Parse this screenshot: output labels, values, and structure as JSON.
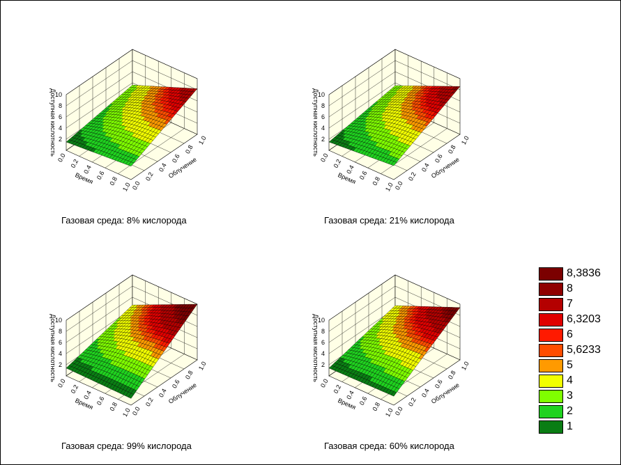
{
  "chart_data": [
    {
      "type": "surface3d",
      "title": "Газовая среда: 8% кислорода",
      "zlabel": "Доступная кислотность",
      "xlabel": "Время",
      "ylabel": "Облучение",
      "x_ticks": [
        "0.0",
        "0.2",
        "0.4",
        "0.6",
        "0.8",
        "1.0"
      ],
      "y_ticks": [
        "0.0",
        "0.2",
        "0.4",
        "0.6",
        "0.8",
        "1.0"
      ],
      "z_ticks": [
        "2",
        "4",
        "6",
        "8",
        "10"
      ],
      "zlim": [
        0,
        10
      ],
      "corner_values": {
        "time0_irr0": 1.5,
        "time1_irr0": 2.4,
        "time0_irr1": 3.6,
        "time1_irr1": 8.2
      }
    },
    {
      "type": "surface3d",
      "title": "Газовая среда: 21% кислорода",
      "zlabel": "Доступная кислотность",
      "xlabel": "Время",
      "ylabel": "Облучение",
      "x_ticks": [
        "0.0",
        "0.2",
        "0.4",
        "0.6",
        "0.8",
        "1.0"
      ],
      "y_ticks": [
        "0.0",
        "0.2",
        "0.4",
        "0.6",
        "0.8",
        "1.0"
      ],
      "z_ticks": [
        "2",
        "4",
        "6",
        "8",
        "10"
      ],
      "zlim": [
        0,
        10
      ],
      "corner_values": {
        "time0_irr0": 1.5,
        "time1_irr0": 2.5,
        "time0_irr1": 3.5,
        "time1_irr1": 8.6
      }
    },
    {
      "type": "surface3d",
      "title": "Газовая среда: 99% кислорода",
      "zlabel": "Доступная кислотность",
      "xlabel": "Время",
      "ylabel": "Облучение",
      "x_ticks": [
        "0.0",
        "0.2",
        "0.4",
        "0.6",
        "0.8",
        "1.0"
      ],
      "y_ticks": [
        "0.0",
        "0.2",
        "0.4",
        "0.6",
        "0.8",
        "1.0"
      ],
      "z_ticks": [
        "2",
        "4",
        "6",
        "8",
        "10"
      ],
      "zlim": [
        0,
        10
      ],
      "corner_values": {
        "time0_irr0": 1.4,
        "time1_irr0": 1.2,
        "time0_irr1": 4.6,
        "time1_irr1": 10.0
      }
    },
    {
      "type": "surface3d",
      "title": "Газовая среда: 60% кислорода",
      "zlabel": "Доступная кислотность",
      "xlabel": "Время",
      "ylabel": "Облучение",
      "x_ticks": [
        "0.0",
        "0.2",
        "0.4",
        "0.6",
        "0.8",
        "1.0"
      ],
      "y_ticks": [
        "0.0",
        "0.2",
        "0.4",
        "0.6",
        "0.8",
        "1.0"
      ],
      "z_ticks": [
        "2",
        "4",
        "6",
        "8",
        "10"
      ],
      "zlim": [
        0,
        10
      ],
      "corner_values": {
        "time0_irr0": 1.4,
        "time1_irr0": 1.6,
        "time0_irr1": 4.5,
        "time1_irr1": 9.4
      }
    }
  ],
  "legend": [
    {
      "label": "8,3836",
      "color": "#7b0000",
      "min": 8.3836
    },
    {
      "label": "8",
      "color": "#8f0000",
      "min": 8
    },
    {
      "label": "7",
      "color": "#b40000",
      "min": 7
    },
    {
      "label": "6,3203",
      "color": "#e00000",
      "min": 6.3203
    },
    {
      "label": "6",
      "color": "#ff1a00",
      "min": 6
    },
    {
      "label": "5,6233",
      "color": "#ff4d00",
      "min": 5.6233
    },
    {
      "label": "5",
      "color": "#ff9a00",
      "min": 5
    },
    {
      "label": "4",
      "color": "#f2ff00",
      "min": 4
    },
    {
      "label": "3",
      "color": "#7fff00",
      "min": 3
    },
    {
      "label": "2",
      "color": "#1fd21f",
      "min": 2
    },
    {
      "label": "1",
      "color": "#0a7d14",
      "min": 1
    }
  ]
}
